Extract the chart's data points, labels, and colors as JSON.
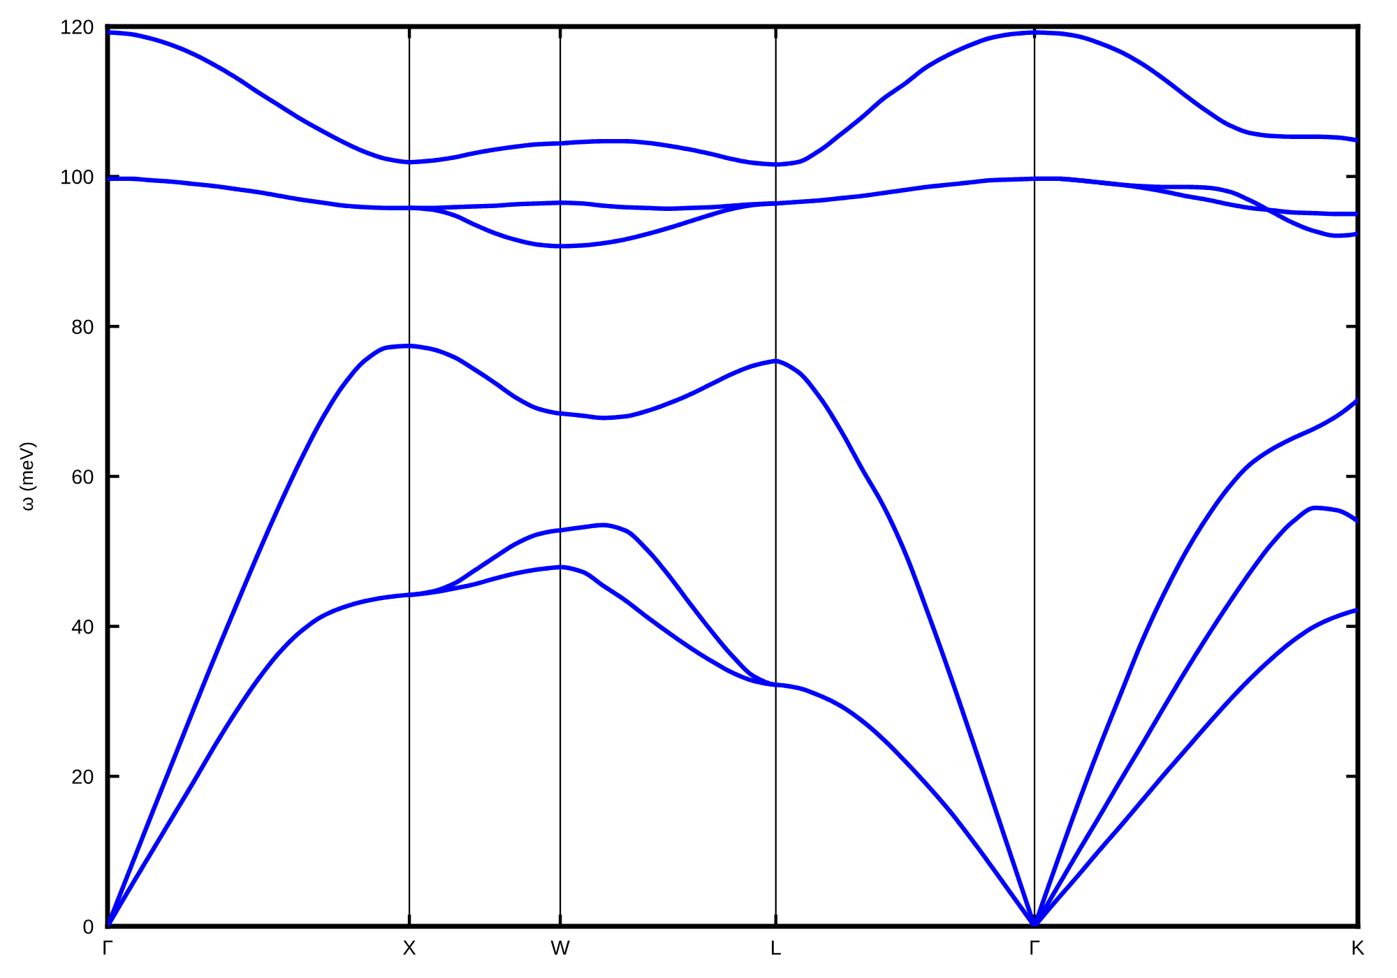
{
  "chart_data": {
    "type": "line",
    "ylabel": "ω (meV)",
    "categories": [
      "Γ",
      null,
      null,
      null,
      null,
      null,
      null,
      null,
      null,
      null,
      null,
      null,
      null,
      null,
      "X",
      null,
      null,
      null,
      null,
      null,
      null,
      "W",
      null,
      null,
      null,
      null,
      null,
      null,
      null,
      null,
      null,
      "L",
      null,
      null,
      null,
      null,
      null,
      null,
      null,
      null,
      null,
      null,
      null,
      "Γ",
      null,
      null,
      null,
      null,
      null,
      null,
      null,
      null,
      null,
      null,
      null,
      null,
      null,
      null,
      "K"
    ],
    "ylim": [
      0,
      120
    ],
    "yticks": [
      0,
      20,
      40,
      60,
      80,
      100,
      120
    ],
    "grid": "x",
    "line_style": "solid",
    "series": [
      {
        "color": "#0000ff",
        "values": [
          0,
          4.9,
          9.7,
          14.5,
          19.3,
          24.2,
          28.8,
          33.0,
          36.6,
          39.4,
          41.4,
          42.6,
          43.4,
          43.9,
          44.2,
          44.5,
          45.0,
          45.6,
          46.4,
          47.1,
          47.6,
          47.9,
          47.3,
          45.4,
          43.5,
          41.3,
          39.2,
          37.2,
          35.4,
          33.8,
          32.7,
          32.2,
          31.8,
          30.8,
          29.4,
          27.4,
          24.9,
          22.0,
          18.9,
          15.6,
          11.9,
          8.0,
          4.0,
          0,
          3.4,
          6.7,
          10.1,
          13.4,
          16.8,
          20.2,
          23.5,
          26.8,
          30.0,
          33.0,
          35.7,
          38.1,
          40.0,
          41.3,
          42.2
        ]
      },
      {
        "color": "#0000ff",
        "values": [
          null,
          null,
          null,
          null,
          null,
          null,
          null,
          null,
          null,
          null,
          null,
          null,
          null,
          null,
          44.2,
          44.6,
          45.6,
          47.4,
          49.3,
          51.1,
          52.3,
          52.8,
          53.2,
          53.5,
          52.8,
          50.3,
          46.9,
          43.1,
          39.4,
          36.0,
          33.3,
          32.2,
          null,
          null,
          null,
          null,
          null,
          null,
          null,
          null,
          null,
          null,
          null,
          0,
          4.9,
          9.8,
          14.6,
          19.5,
          24.3,
          29.2,
          34.0,
          38.6,
          43.0,
          47.2,
          51.0,
          54.0,
          55.8,
          55.5,
          54.0
        ]
      },
      {
        "color": "#0000ff",
        "values": [
          0,
          7.3,
          14.6,
          21.8,
          29.0,
          36.1,
          43.0,
          49.8,
          56.3,
          62.4,
          67.9,
          72.4,
          75.6,
          77.2,
          77.4,
          77.0,
          76.0,
          74.3,
          72.4,
          70.4,
          69.0,
          68.4,
          68.1,
          67.8,
          68.0,
          68.7,
          69.7,
          70.9,
          72.3,
          73.7,
          74.8,
          75.4,
          74.0,
          70.7,
          66.2,
          61.0,
          56.0,
          49.8,
          42.2,
          34.2,
          25.8,
          17.2,
          8.6,
          0,
          8.2,
          16.2,
          23.8,
          31.0,
          38.1,
          44.3,
          49.8,
          54.5,
          58.5,
          61.6,
          63.6,
          65.1,
          66.4,
          68.0,
          70.2
        ]
      },
      {
        "color": "#0000ff",
        "values": [
          99.7,
          99.7,
          99.5,
          99.3,
          99.0,
          98.7,
          98.3,
          97.9,
          97.4,
          96.9,
          96.5,
          96.1,
          95.9,
          95.8,
          95.8,
          95.6,
          94.9,
          93.6,
          92.4,
          91.5,
          90.9,
          90.7,
          90.8,
          91.1,
          91.6,
          92.3,
          93.1,
          94.0,
          94.9,
          95.7,
          96.2,
          96.4,
          96.6,
          96.8,
          97.1,
          97.4,
          97.8,
          98.2,
          98.6,
          98.9,
          99.2,
          99.5,
          99.6,
          99.7,
          99.7,
          99.5,
          99.2,
          98.9,
          98.7,
          98.6,
          98.6,
          98.5,
          98.0,
          96.8,
          95.3,
          93.8,
          92.7,
          92.1,
          92.4
        ]
      },
      {
        "color": "#0000ff",
        "values": [
          null,
          null,
          null,
          null,
          null,
          null,
          null,
          null,
          null,
          null,
          null,
          null,
          null,
          null,
          95.8,
          95.8,
          95.9,
          96.0,
          96.1,
          96.3,
          96.4,
          96.5,
          96.4,
          96.1,
          95.9,
          95.8,
          95.7,
          95.8,
          95.9,
          96.1,
          96.3,
          96.4,
          null,
          null,
          null,
          null,
          null,
          null,
          null,
          null,
          null,
          null,
          null,
          99.7,
          99.7,
          99.5,
          99.2,
          98.9,
          98.5,
          98.0,
          97.4,
          96.9,
          96.3,
          95.8,
          95.5,
          95.2,
          95.1,
          95.0,
          95.0
        ]
      },
      {
        "color": "#0000ff",
        "values": [
          119.2,
          119.0,
          118.4,
          117.5,
          116.3,
          114.8,
          113.1,
          111.2,
          109.4,
          107.6,
          106.0,
          104.5,
          103.2,
          102.3,
          101.9,
          102.1,
          102.5,
          103.1,
          103.6,
          104.0,
          104.3,
          104.4,
          104.6,
          104.7,
          104.7,
          104.5,
          104.1,
          103.6,
          103.0,
          102.3,
          101.8,
          101.6,
          101.9,
          103.4,
          105.6,
          107.9,
          110.4,
          112.4,
          114.6,
          116.2,
          117.5,
          118.5,
          119.0,
          119.2,
          119.1,
          118.7,
          117.8,
          116.6,
          115.0,
          113.0,
          110.8,
          108.7,
          106.9,
          105.8,
          105.4,
          105.3,
          105.3,
          105.2,
          104.8
        ]
      }
    ]
  }
}
